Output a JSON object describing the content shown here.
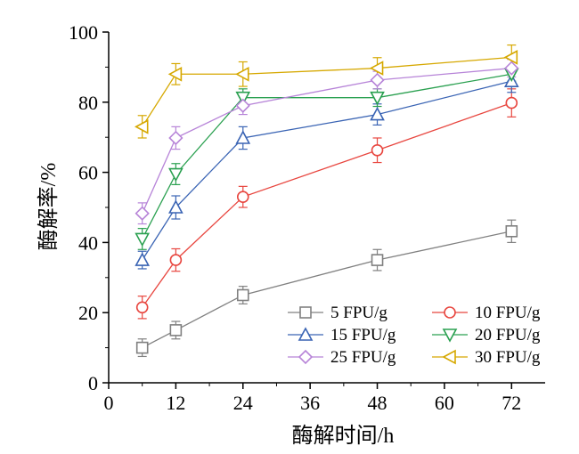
{
  "chart_data": {
    "type": "line",
    "xlabel": "酶解时间/h",
    "ylabel": "酶解率/%",
    "x": [
      6,
      12,
      24,
      48,
      72
    ],
    "xlim": [
      0,
      78
    ],
    "ylim": [
      0,
      100
    ],
    "xticks": [
      0,
      12,
      24,
      36,
      48,
      60,
      72
    ],
    "yticks": [
      0,
      20,
      40,
      60,
      80,
      100
    ],
    "grid": false,
    "legend_position": "bottom-right",
    "series": [
      {
        "name": "5 FPU/g",
        "color": "#808080",
        "marker": "square",
        "values": [
          10,
          15,
          25,
          35,
          43.2
        ],
        "errors": [
          2.5,
          2.5,
          2.5,
          3,
          3.2
        ]
      },
      {
        "name": "10 FPU/g",
        "color": "#e8463f",
        "marker": "circle",
        "values": [
          21.5,
          35,
          53,
          66.3,
          79.8
        ],
        "errors": [
          3.2,
          3.2,
          3,
          3.5,
          4
        ]
      },
      {
        "name": "15 FPU/g",
        "color": "#3a64b4",
        "marker": "triangle-up",
        "values": [
          35,
          50,
          69.8,
          76.5,
          86
        ],
        "errors": [
          2.5,
          3.3,
          3.2,
          3,
          3.2
        ]
      },
      {
        "name": "20 FPU/g",
        "color": "#2aa050",
        "marker": "triangle-down",
        "values": [
          41,
          59.5,
          81.3,
          81.3,
          88
        ],
        "errors": [
          3,
          3,
          2.5,
          2.5,
          2
        ]
      },
      {
        "name": "25 FPU/g",
        "color": "#b784d8",
        "marker": "diamond",
        "values": [
          48.3,
          69.8,
          79,
          86.3,
          89.7
        ],
        "errors": [
          3,
          3.2,
          2.5,
          2.5,
          2.5
        ]
      },
      {
        "name": "30 FPU/g",
        "color": "#d6a800",
        "marker": "triangle-left",
        "values": [
          73,
          88,
          88,
          89.7,
          92.8
        ],
        "errors": [
          3.2,
          3,
          3.5,
          3,
          3.5
        ]
      }
    ]
  }
}
